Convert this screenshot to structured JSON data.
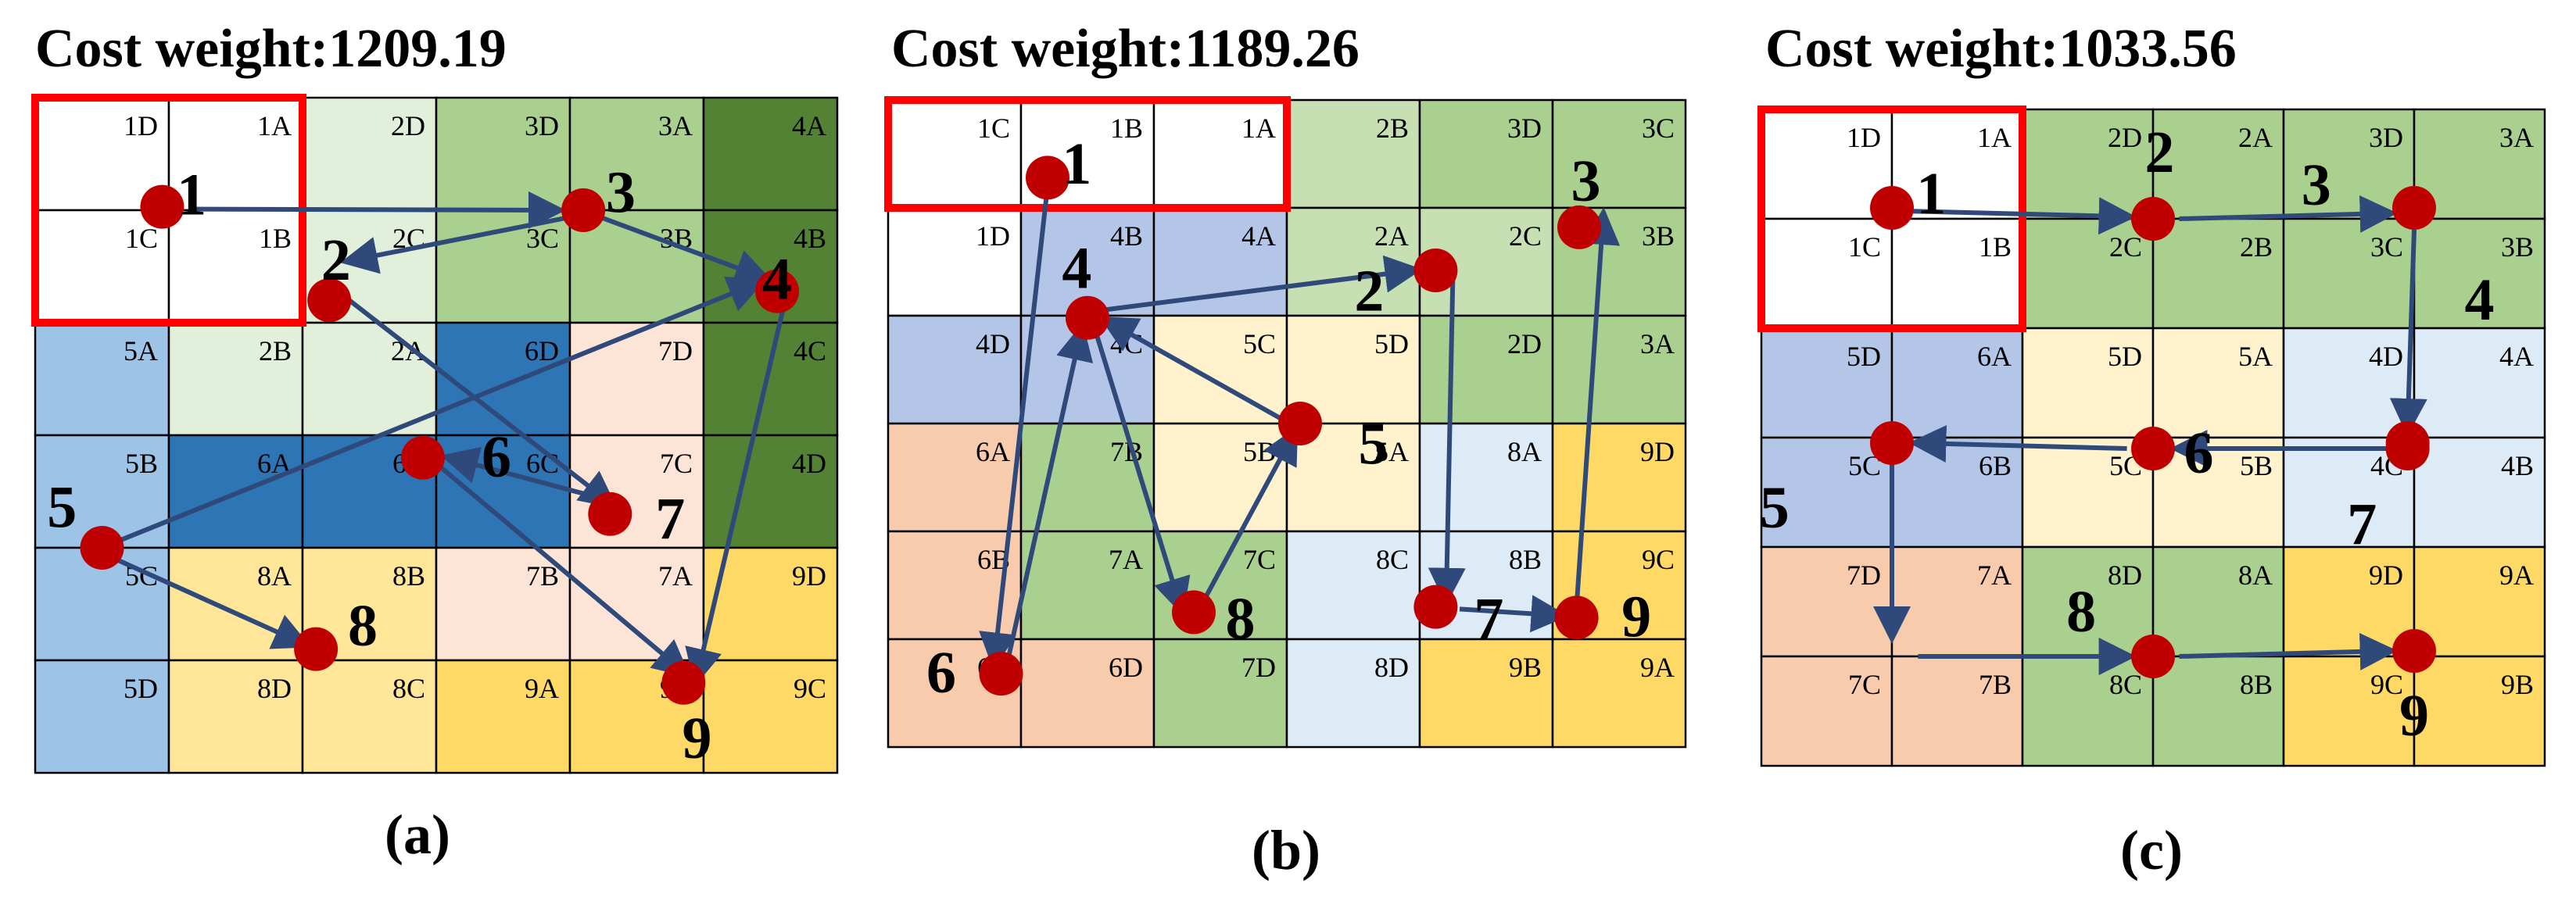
{
  "colors": {
    "red": "#ff0000",
    "dot": "#c00000",
    "arrow": "#2f4a7a",
    "grid": "#000000",
    "white": "#ffffff",
    "palegreen": "#e2efda",
    "green": "#a9d08e",
    "lightgreen": "#c6e0b4",
    "darkgreen": "#548235",
    "lightblue": "#9dc3e6",
    "periwinkle": "#b4c6e7",
    "paleblue": "#ddebf7",
    "blue": "#2e75b6",
    "peach": "#fce4d6",
    "salmon": "#f8cbad",
    "yellow": "#ffe699",
    "gold": "#ffd966",
    "cream": "#fff2cc"
  },
  "panels": [
    {
      "cost_label": "Cost weight:",
      "cost_value": "1209.19",
      "caption": "(a)",
      "fills": [
        [
          "white",
          "white",
          "palegreen",
          "green",
          "green",
          "darkgreen"
        ],
        [
          "white",
          "white",
          "palegreen",
          "green",
          "green",
          "darkgreen"
        ],
        [
          "lightblue",
          "palegreen",
          "palegreen",
          "blue",
          "peach",
          "darkgreen"
        ],
        [
          "lightblue",
          "blue",
          "blue",
          "blue",
          "peach",
          "darkgreen"
        ],
        [
          "lightblue",
          "yellow",
          "yellow",
          "peach",
          "peach",
          "gold"
        ],
        [
          "lightblue",
          "yellow",
          "yellow",
          "gold",
          "gold",
          "gold"
        ]
      ],
      "labels": [
        [
          "1D",
          "1A",
          "2D",
          "3D",
          "3A",
          "4A"
        ],
        [
          "1C",
          "1B",
          "2C",
          "3C",
          "3B",
          "4B"
        ],
        [
          "5A",
          "2B",
          "2A",
          "6D",
          "7D",
          "4C"
        ],
        [
          "5B",
          "6A",
          "6B",
          "6C",
          "7C",
          "4D"
        ],
        [
          "5C",
          "8A",
          "8B",
          "7B",
          "7A",
          "9D"
        ],
        [
          "5D",
          "8D",
          "8C",
          "9A",
          "9B",
          "9C"
        ]
      ],
      "highlight": [
        [
          0,
          0
        ],
        [
          2,
          2
        ]
      ],
      "nodes": [
        {
          "id": "1",
          "gc": 0.95,
          "gr": 0.97,
          "dx": 0.22,
          "dy": -0.1
        },
        {
          "id": "2",
          "gc": 2.2,
          "gr": 1.8,
          "dx": 0.05,
          "dy": -0.35
        },
        {
          "id": "3",
          "gc": 4.1,
          "gr": 1.0,
          "dx": 0.28,
          "dy": -0.15
        },
        {
          "id": "4",
          "gc": 5.55,
          "gr": 1.72,
          "dx": 0.0,
          "dy": -0.1
        },
        {
          "id": "5",
          "gc": 0.5,
          "gr": 4.0,
          "dx": -0.3,
          "dy": -0.35
        },
        {
          "id": "6",
          "gc": 2.9,
          "gr": 3.2,
          "dx": 0.55,
          "dy": 0.0
        },
        {
          "id": "7",
          "gc": 4.3,
          "gr": 3.7,
          "dx": 0.45,
          "dy": 0.05
        },
        {
          "id": "8",
          "gc": 2.1,
          "gr": 4.9,
          "dx": 0.35,
          "dy": -0.2
        },
        {
          "id": "9",
          "gc": 4.85,
          "gr": 5.2,
          "dx": 0.1,
          "dy": 0.5
        }
      ],
      "arrows": [
        {
          "from": [
            1.15,
            0.99
          ],
          "to": [
            3.9,
            1.0
          ]
        },
        {
          "from": [
            4.05,
            1.05
          ],
          "to": [
            2.35,
            1.45
          ]
        },
        {
          "from": [
            4.2,
            1.05
          ],
          "to": [
            5.45,
            1.6
          ]
        },
        {
          "from": [
            2.35,
            1.8
          ],
          "to": [
            4.3,
            3.6
          ]
        },
        {
          "from": [
            0.6,
            3.95
          ],
          "to": [
            5.4,
            1.65
          ]
        },
        {
          "from": [
            0.6,
            4.1
          ],
          "to": [
            2.0,
            4.85
          ]
        },
        {
          "from": [
            3.0,
            3.25
          ],
          "to": [
            4.85,
            5.1
          ]
        },
        {
          "from": [
            5.6,
            1.85
          ],
          "to": [
            4.95,
            5.15
          ]
        },
        {
          "from": [
            4.2,
            3.55
          ],
          "to": [
            3.1,
            3.2
          ]
        }
      ]
    },
    {
      "cost_label": "Cost weight:",
      "cost_value": "1189.26",
      "caption": "(b)",
      "fills": [
        [
          "white",
          "white",
          "white",
          "lightgreen",
          "green",
          "green"
        ],
        [
          "white",
          "periwinkle",
          "periwinkle",
          "lightgreen",
          "lightgreen",
          "green"
        ],
        [
          "periwinkle",
          "periwinkle",
          "cream",
          "cream",
          "green",
          "green"
        ],
        [
          "salmon",
          "green",
          "cream",
          "cream",
          "paleblue",
          "gold"
        ],
        [
          "salmon",
          "green",
          "green",
          "paleblue",
          "paleblue",
          "gold"
        ],
        [
          "salmon",
          "salmon",
          "green",
          "paleblue",
          "gold",
          "gold"
        ]
      ],
      "labels": [
        [
          "1C",
          "1B",
          "1A",
          "2B",
          "3D",
          "3C"
        ],
        [
          "1D",
          "4B",
          "4A",
          "2A",
          "2C",
          "3B"
        ],
        [
          "4D",
          "4C",
          "5C",
          "5D",
          "2D",
          "3A"
        ],
        [
          "6A",
          "7B",
          "5B",
          "5A",
          "8A",
          "9D"
        ],
        [
          "6B",
          "7A",
          "7C",
          "8C",
          "8B",
          "9C"
        ],
        [
          "6C",
          "6D",
          "7D",
          "8D",
          "9B",
          "9A"
        ]
      ],
      "highlight": [
        [
          0,
          0
        ],
        [
          1,
          3
        ]
      ],
      "nodes": [
        {
          "id": "1",
          "gc": 1.2,
          "gr": 0.72,
          "dx": 0.22,
          "dy": -0.12
        },
        {
          "id": "2",
          "gc": 4.12,
          "gr": 1.58,
          "dx": -0.5,
          "dy": 0.2
        },
        {
          "id": "3",
          "gc": 5.2,
          "gr": 1.18,
          "dx": 0.05,
          "dy": -0.42
        },
        {
          "id": "4",
          "gc": 1.5,
          "gr": 2.02,
          "dx": -0.08,
          "dy": -0.45
        },
        {
          "id": "5",
          "gc": 3.1,
          "gr": 3.0,
          "dx": 0.55,
          "dy": 0.2
        },
        {
          "id": "6",
          "gc": 0.85,
          "gr": 5.32,
          "dx": -0.45,
          "dy": 0.0
        },
        {
          "id": "7",
          "gc": 4.12,
          "gr": 4.7,
          "dx": 0.4,
          "dy": 0.12
        },
        {
          "id": "8",
          "gc": 2.3,
          "gr": 4.75,
          "dx": 0.35,
          "dy": 0.07
        },
        {
          "id": "9",
          "gc": 5.18,
          "gr": 4.8,
          "dx": 0.45,
          "dy": 0.0
        }
      ],
      "arrows": [
        {
          "from": [
            1.2,
            0.8
          ],
          "to": [
            0.8,
            5.2
          ]
        },
        {
          "from": [
            0.9,
            5.2
          ],
          "to": [
            1.45,
            2.15
          ]
        },
        {
          "from": [
            1.55,
            2.1
          ],
          "to": [
            2.2,
            4.7
          ]
        },
        {
          "from": [
            2.35,
            4.7
          ],
          "to": [
            3.05,
            3.1
          ]
        },
        {
          "from": [
            2.95,
            2.95
          ],
          "to": [
            1.65,
            2.05
          ]
        },
        {
          "from": [
            1.6,
            1.95
          ],
          "to": [
            3.95,
            1.58
          ]
        },
        {
          "from": [
            4.25,
            1.6
          ],
          "to": [
            4.2,
            4.6
          ]
        },
        {
          "from": [
            4.3,
            4.72
          ],
          "to": [
            5.05,
            4.78
          ]
        },
        {
          "from": [
            5.18,
            4.7
          ],
          "to": [
            5.38,
            1.08
          ]
        }
      ]
    },
    {
      "cost_label": "Cost weight:",
      "cost_value": "1033.56",
      "caption": "(c)",
      "fills": [
        [
          "white",
          "white",
          "green",
          "green",
          "green",
          "green"
        ],
        [
          "white",
          "white",
          "green",
          "green",
          "green",
          "green"
        ],
        [
          "periwinkle",
          "periwinkle",
          "cream",
          "cream",
          "paleblue",
          "paleblue"
        ],
        [
          "periwinkle",
          "periwinkle",
          "cream",
          "cream",
          "paleblue",
          "paleblue"
        ],
        [
          "salmon",
          "salmon",
          "green",
          "green",
          "gold",
          "gold"
        ],
        [
          "salmon",
          "salmon",
          "green",
          "green",
          "gold",
          "gold"
        ]
      ],
      "labels": [
        [
          "1D",
          "1A",
          "2D",
          "2A",
          "3D",
          "3A"
        ],
        [
          "1C",
          "1B",
          "2C",
          "2B",
          "3C",
          "3B"
        ],
        [
          "5D",
          "6A",
          "5D",
          "5A",
          "4D",
          "4A"
        ],
        [
          "5C",
          "6B",
          "5C",
          "5B",
          "4C",
          "4B"
        ],
        [
          "7D",
          "7A",
          "8D",
          "8A",
          "9D",
          "9A"
        ],
        [
          "7C",
          "7B",
          "8C",
          "8B",
          "9C",
          "9B"
        ]
      ],
      "highlight": [
        [
          0,
          0
        ],
        [
          2,
          2
        ]
      ],
      "nodes": [
        {
          "id": "1",
          "gc": 1.0,
          "gr": 0.9,
          "dx": 0.3,
          "dy": -0.12
        },
        {
          "id": "2",
          "gc": 3.0,
          "gr": 1.0,
          "dx": 0.05,
          "dy": -0.6
        },
        {
          "id": "3",
          "gc": 5.0,
          "gr": 0.9,
          "dx": -0.75,
          "dy": -0.2
        },
        {
          "id": "4",
          "gc": 4.95,
          "gr": 3.05,
          "dx": 0.55,
          "dy": -1.3
        },
        {
          "id": "5",
          "gc": 1.0,
          "gr": 3.05,
          "dx": -0.9,
          "dy": 0.6
        },
        {
          "id": "6",
          "gc": 3.0,
          "gr": 3.1,
          "dx": 0.35,
          "dy": 0.05
        },
        {
          "id": "7",
          "gc": 4.95,
          "gr": 3.1,
          "dx": -0.35,
          "dy": 0.7
        },
        {
          "id": "8",
          "gc": 3.0,
          "gr": 5.0,
          "dx": -0.55,
          "dy": -0.4
        },
        {
          "id": "9",
          "gc": 5.0,
          "gr": 4.95,
          "dx": 0.0,
          "dy": 0.6
        }
      ],
      "arrows": [
        {
          "from": [
            1.15,
            0.93
          ],
          "to": [
            2.8,
            0.98
          ]
        },
        {
          "from": [
            3.2,
            1.0
          ],
          "to": [
            4.8,
            0.95
          ]
        },
        {
          "from": [
            5.0,
            1.1
          ],
          "to": [
            4.95,
            2.9
          ]
        },
        {
          "from": [
            4.8,
            3.1
          ],
          "to": [
            3.2,
            3.1
          ]
        },
        {
          "from": [
            2.8,
            3.1
          ],
          "to": [
            1.2,
            3.05
          ]
        },
        {
          "from": [
            1.0,
            3.2
          ],
          "to": [
            1.0,
            4.8
          ]
        },
        {
          "from": [
            1.2,
            5.0
          ],
          "to": [
            2.8,
            5.0
          ]
        },
        {
          "from": [
            3.2,
            5.0
          ],
          "to": [
            4.8,
            4.95
          ]
        }
      ]
    }
  ]
}
